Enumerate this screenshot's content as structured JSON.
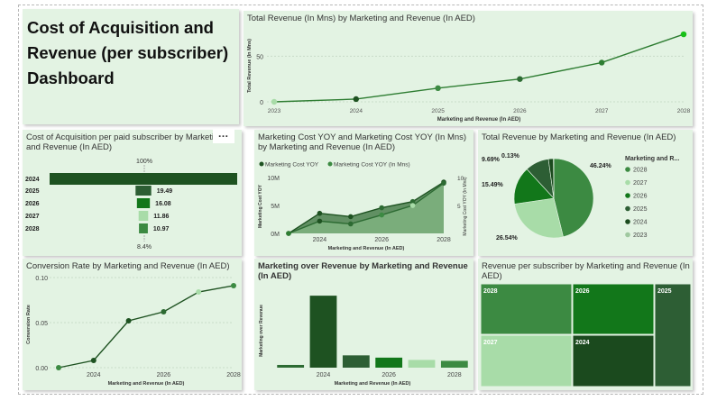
{
  "colors": {
    "panel_bg": "#e3f3e3",
    "dark": "#1e5221",
    "mid": "#3c8a42",
    "medium": "#2e7d32",
    "light": "#a8dca8",
    "green": "#18a018"
  },
  "dashboard": {
    "title": "Cost of Acquisition and Revenue (per subscriber) Dashboard"
  },
  "panels": {
    "revenue_line": {
      "title": "Total Revenue (In Mns) by Marketing and Revenue (In AED)"
    },
    "coa_funnel": {
      "title": "Cost of Acquisition per paid subscriber by Marketing and Revenue (In AED)"
    },
    "marketing_cost": {
      "title": "Marketing Cost YOY and Marketing Cost YOY (In Mns) by Marketing and Revenue (In AED)"
    },
    "revenue_pie": {
      "title": "Total Revenue by Marketing and Revenue (In AED)"
    },
    "conversion": {
      "title": "Conversion Rate by Marketing and Revenue (In AED)"
    },
    "mkt_over_rev": {
      "title": "Marketing over Revenue by Marketing and Revenue (In AED)"
    },
    "rev_per_sub": {
      "title": "Revenue per subscriber by Marketing and Revenue (In AED)"
    }
  },
  "chart_data": [
    {
      "id": "revenue_line",
      "type": "line",
      "title": "Total Revenue (In Mns) by Marketing and Revenue (In AED)",
      "xlabel": "Marketing and Revenue (In AED)",
      "ylabel": "Total Revenue (In Mns)",
      "x": [
        "2023",
        "2024",
        "2025",
        "2026",
        "2027",
        "2028"
      ],
      "values": [
        0,
        3,
        15,
        25,
        43,
        74
      ],
      "yticks": [
        {
          "v": 0,
          "label": "0"
        },
        {
          "v": 50,
          "label": "50"
        }
      ],
      "ylim": [
        0,
        80
      ]
    },
    {
      "id": "coa_funnel",
      "type": "bar",
      "title": "Cost of Acquisition per paid subscriber by Marketing and Revenue (In AED)",
      "categories": [
        "2024",
        "2025",
        "2026",
        "2027",
        "2028"
      ],
      "values": [
        233,
        19.49,
        16.08,
        11.86,
        10.97
      ],
      "value_labels": [
        "",
        "19.49",
        "16.08",
        "11.86",
        "10.97"
      ],
      "top_label": "100%",
      "bottom_label": "8.4%"
    },
    {
      "id": "marketing_cost",
      "type": "area",
      "title": "Marketing Cost YOY and Marketing Cost YOY (In Mns) by Marketing and Revenue (In AED)",
      "xlabel": "Marketing and Revenue (In AED)",
      "ylabel_left": "Marketing Cost YOY",
      "ylabel_right": "Marketing Cost YOY (In Mns)",
      "x": [
        2023,
        2024,
        2025,
        2026,
        2027,
        2028
      ],
      "x_tick_labels": [
        "2024",
        "2026",
        "2028"
      ],
      "x_tick_values": [
        2024,
        2026,
        2028
      ],
      "legend": [
        "Marketing Cost YOY",
        "Marketing Cost YOY (In Mns)"
      ],
      "series": [
        {
          "name": "Marketing Cost YOY",
          "values": [
            0,
            3.6,
            3.0,
            4.6,
            5.7,
            9.2
          ],
          "axis": "left"
        },
        {
          "name": "Marketing Cost YOY (In Mns)",
          "values": [
            0,
            2.2,
            1.7,
            3.3,
            5.0,
            9.0
          ],
          "axis": "right"
        }
      ],
      "yticks_left": [
        {
          "v": 0,
          "label": "0M"
        },
        {
          "v": 5,
          "label": "5M"
        },
        {
          "v": 10,
          "label": "10M"
        }
      ],
      "yticks_right": [
        {
          "v": 5,
          "label": "5"
        },
        {
          "v": 10,
          "label": "10"
        }
      ],
      "ylim": [
        0,
        10.5
      ]
    },
    {
      "id": "revenue_pie",
      "type": "pie",
      "title": "Total Revenue by Marketing and Revenue (In AED)",
      "legend_title": "Marketing and R...",
      "labels": [
        "2028",
        "2027",
        "2026",
        "2025",
        "2024",
        "2023"
      ],
      "values": [
        46.24,
        26.54,
        15.49,
        9.69,
        2.04,
        0.13
      ],
      "percent_labels": [
        "46.24%",
        "26.54%",
        "15.49%",
        "9.69%",
        "",
        "0.13%"
      ],
      "colors": [
        "#3c8a42",
        "#a8dca8",
        "#12771a",
        "#2d5e34",
        "#1b4a1e",
        "#a0c8a0"
      ]
    },
    {
      "id": "conversion",
      "type": "line",
      "title": "Conversion Rate by Marketing and Revenue (In AED)",
      "xlabel": "Marketing and Revenue (In AED)",
      "ylabel": "Conversion Rate",
      "x": [
        2023,
        2024,
        2025,
        2026,
        2027,
        2028
      ],
      "x_tick_labels": [
        "2024",
        "2026",
        "2028"
      ],
      "x_tick_values": [
        2024,
        2026,
        2028
      ],
      "values": [
        0.0,
        0.008,
        0.052,
        0.062,
        0.084,
        0.091
      ],
      "yticks": [
        {
          "v": 0,
          "label": "0.00"
        },
        {
          "v": 0.05,
          "label": "0.05"
        },
        {
          "v": 0.1,
          "label": "0.10"
        }
      ],
      "ylim": [
        0,
        0.1
      ]
    },
    {
      "id": "mkt_over_rev",
      "type": "bar",
      "title": "Marketing over Revenue by Marketing and Revenue (In AED)",
      "xlabel": "Marketing and Revenue (In AED)",
      "ylabel": "Marketing over Revenue",
      "x": [
        2023,
        2024,
        2025,
        2026,
        2027,
        2028
      ],
      "x_tick_labels": [
        "2024",
        "2026",
        "2028"
      ],
      "x_tick_values": [
        2024,
        2026,
        2028
      ],
      "values": [
        0.06,
        1.58,
        0.27,
        0.22,
        0.17,
        0.15
      ],
      "colors": [
        "#2d6b33",
        "#1e5221",
        "#2d5e34",
        "#12771a",
        "#a8dca8",
        "#3c8a42"
      ],
      "ylim": [
        0,
        1.8
      ]
    },
    {
      "id": "rev_per_sub",
      "type": "heatmap",
      "title": "Revenue per subscriber by Marketing and Revenue (In AED)",
      "labels": [
        "2028",
        "2026",
        "2025",
        "2027",
        "2024"
      ],
      "colors": [
        "#3c8a42",
        "#12771a",
        "#2d5e34",
        "#a8dca8",
        "#1b4a1e"
      ]
    }
  ]
}
